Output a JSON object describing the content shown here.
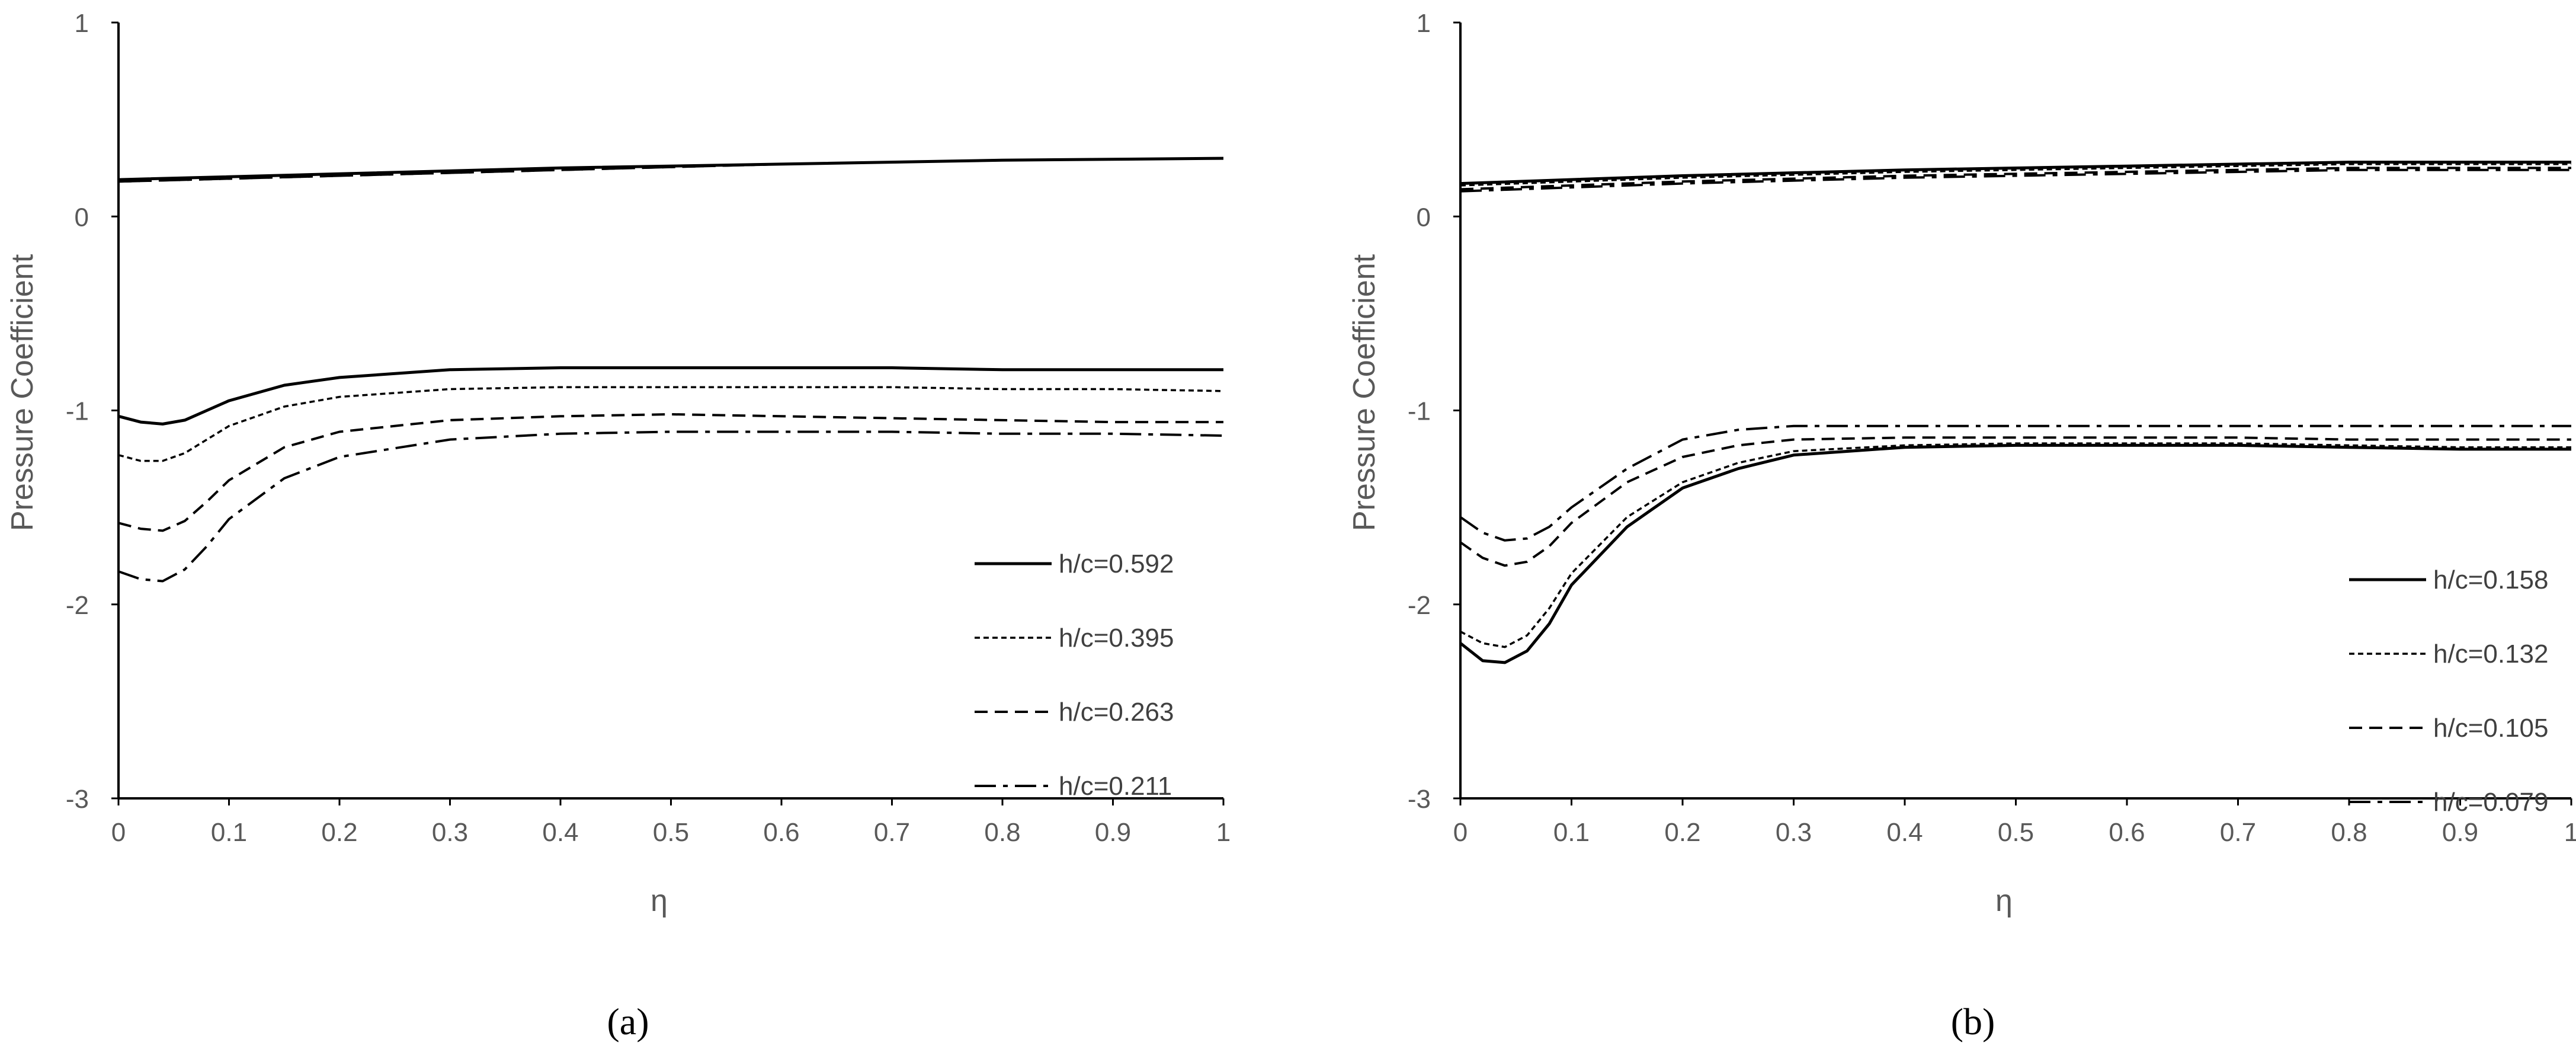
{
  "chart_data": [
    {
      "type": "line",
      "panel_label": "(a)",
      "xlabel": "η",
      "ylabel": "Pressure Coefficient",
      "xlim": [
        0,
        1
      ],
      "ylim": [
        -3,
        1
      ],
      "x_ticks": [
        "0",
        "0.1",
        "0.2",
        "0.3",
        "0.4",
        "0.5",
        "0.6",
        "0.7",
        "0.8",
        "0.9",
        "1"
      ],
      "y_ticks": [
        "-3",
        "-2",
        "-1",
        "0",
        "1"
      ],
      "legend_position": "bottom-right",
      "series": [
        {
          "name": "h/c=0.592",
          "style": "solid",
          "upper": {
            "x": [
              0,
              0.2,
              0.4,
              0.6,
              0.8,
              1.0
            ],
            "y": [
              0.19,
              0.22,
              0.25,
              0.27,
              0.29,
              0.3
            ]
          },
          "lower": {
            "x": [
              0,
              0.02,
              0.04,
              0.06,
              0.08,
              0.1,
              0.15,
              0.2,
              0.3,
              0.4,
              0.5,
              0.6,
              0.7,
              0.8,
              0.9,
              1.0
            ],
            "y": [
              -1.03,
              -1.06,
              -1.07,
              -1.05,
              -1.0,
              -0.95,
              -0.87,
              -0.83,
              -0.79,
              -0.78,
              -0.78,
              -0.78,
              -0.78,
              -0.79,
              -0.79,
              -0.79
            ]
          }
        },
        {
          "name": "h/c=0.395",
          "style": "dotted",
          "upper": {
            "x": [
              0,
              0.2,
              0.4,
              0.6,
              0.8,
              1.0
            ],
            "y": [
              0.19,
              0.22,
              0.25,
              0.27,
              0.29,
              0.3
            ]
          },
          "lower": {
            "x": [
              0,
              0.02,
              0.04,
              0.06,
              0.08,
              0.1,
              0.15,
              0.2,
              0.3,
              0.4,
              0.5,
              0.6,
              0.7,
              0.8,
              0.9,
              1.0
            ],
            "y": [
              -1.23,
              -1.26,
              -1.26,
              -1.22,
              -1.15,
              -1.08,
              -0.98,
              -0.93,
              -0.89,
              -0.88,
              -0.88,
              -0.88,
              -0.88,
              -0.89,
              -0.89,
              -0.9
            ]
          }
        },
        {
          "name": "h/c=0.263",
          "style": "dashed",
          "upper": {
            "x": [
              0,
              0.2,
              0.4,
              0.6,
              0.8,
              1.0
            ],
            "y": [
              0.18,
              0.21,
              0.24,
              0.27,
              0.29,
              0.3
            ]
          },
          "lower": {
            "x": [
              0,
              0.02,
              0.04,
              0.06,
              0.08,
              0.1,
              0.15,
              0.2,
              0.3,
              0.4,
              0.5,
              0.6,
              0.7,
              0.8,
              0.9,
              1.0
            ],
            "y": [
              -1.58,
              -1.61,
              -1.62,
              -1.57,
              -1.47,
              -1.36,
              -1.19,
              -1.11,
              -1.05,
              -1.03,
              -1.02,
              -1.03,
              -1.04,
              -1.05,
              -1.06,
              -1.06
            ]
          }
        },
        {
          "name": "h/c=0.211",
          "style": "dashdot",
          "upper": {
            "x": [
              0,
              0.2,
              0.4,
              0.6,
              0.8,
              1.0
            ],
            "y": [
              0.18,
              0.21,
              0.24,
              0.27,
              0.29,
              0.3
            ]
          },
          "lower": {
            "x": [
              0,
              0.02,
              0.04,
              0.06,
              0.08,
              0.1,
              0.15,
              0.2,
              0.3,
              0.4,
              0.5,
              0.6,
              0.7,
              0.8,
              0.9,
              1.0
            ],
            "y": [
              -1.83,
              -1.87,
              -1.88,
              -1.82,
              -1.7,
              -1.56,
              -1.35,
              -1.24,
              -1.15,
              -1.12,
              -1.11,
              -1.11,
              -1.11,
              -1.12,
              -1.12,
              -1.13
            ]
          }
        }
      ]
    },
    {
      "type": "line",
      "panel_label": "(b)",
      "xlabel": "η",
      "ylabel": "Pressure Coefficient",
      "xlim": [
        0,
        1
      ],
      "ylim": [
        -3,
        1
      ],
      "x_ticks": [
        "0",
        "0.1",
        "0.2",
        "0.3",
        "0.4",
        "0.5",
        "0.6",
        "0.7",
        "0.8",
        "0.9",
        "1"
      ],
      "y_ticks": [
        "-3",
        "-2",
        "-1",
        "0",
        "1"
      ],
      "legend_position": "bottom-right",
      "series": [
        {
          "name": "h/c=0.158",
          "style": "solid",
          "upper": {
            "x": [
              0,
              0.2,
              0.4,
              0.6,
              0.8,
              1.0
            ],
            "y": [
              0.17,
              0.21,
              0.24,
              0.26,
              0.28,
              0.28
            ]
          },
          "lower": {
            "x": [
              0,
              0.02,
              0.04,
              0.06,
              0.08,
              0.1,
              0.15,
              0.2,
              0.25,
              0.3,
              0.4,
              0.5,
              0.6,
              0.7,
              0.8,
              0.9,
              1.0
            ],
            "y": [
              -2.2,
              -2.29,
              -2.3,
              -2.24,
              -2.1,
              -1.9,
              -1.6,
              -1.4,
              -1.3,
              -1.23,
              -1.19,
              -1.18,
              -1.18,
              -1.18,
              -1.19,
              -1.2,
              -1.2
            ]
          }
        },
        {
          "name": "h/c=0.132",
          "style": "dotted",
          "upper": {
            "x": [
              0,
              0.2,
              0.4,
              0.6,
              0.8,
              1.0
            ],
            "y": [
              0.16,
              0.2,
              0.23,
              0.25,
              0.27,
              0.27
            ]
          },
          "lower": {
            "x": [
              0,
              0.02,
              0.04,
              0.06,
              0.08,
              0.1,
              0.15,
              0.2,
              0.25,
              0.3,
              0.4,
              0.5,
              0.6,
              0.7,
              0.8,
              0.9,
              1.0
            ],
            "y": [
              -2.14,
              -2.2,
              -2.22,
              -2.16,
              -2.02,
              -1.84,
              -1.55,
              -1.37,
              -1.27,
              -1.21,
              -1.18,
              -1.17,
              -1.17,
              -1.17,
              -1.18,
              -1.19,
              -1.19
            ]
          }
        },
        {
          "name": "h/c=0.105",
          "style": "dashed",
          "upper": {
            "x": [
              0,
              0.2,
              0.4,
              0.6,
              0.8,
              1.0
            ],
            "y": [
              0.14,
              0.18,
              0.21,
              0.23,
              0.25,
              0.25
            ]
          },
          "lower": {
            "x": [
              0,
              0.02,
              0.04,
              0.06,
              0.08,
              0.1,
              0.15,
              0.2,
              0.25,
              0.3,
              0.4,
              0.5,
              0.6,
              0.7,
              0.8,
              0.9,
              1.0
            ],
            "y": [
              -1.68,
              -1.76,
              -1.8,
              -1.78,
              -1.7,
              -1.58,
              -1.37,
              -1.24,
              -1.18,
              -1.15,
              -1.14,
              -1.14,
              -1.14,
              -1.14,
              -1.15,
              -1.15,
              -1.15
            ]
          }
        },
        {
          "name": "h/c=0.079",
          "style": "dashdot",
          "upper": {
            "x": [
              0,
              0.2,
              0.4,
              0.6,
              0.8,
              1.0
            ],
            "y": [
              0.13,
              0.17,
              0.2,
              0.22,
              0.24,
              0.24
            ]
          },
          "lower": {
            "x": [
              0,
              0.02,
              0.04,
              0.06,
              0.08,
              0.1,
              0.15,
              0.2,
              0.25,
              0.3,
              0.4,
              0.5,
              0.6,
              0.7,
              0.8,
              0.9,
              1.0
            ],
            "y": [
              -1.55,
              -1.63,
              -1.67,
              -1.66,
              -1.6,
              -1.5,
              -1.3,
              -1.15,
              -1.1,
              -1.08,
              -1.08,
              -1.08,
              -1.08,
              -1.08,
              -1.08,
              -1.08,
              -1.08
            ]
          }
        }
      ]
    }
  ]
}
